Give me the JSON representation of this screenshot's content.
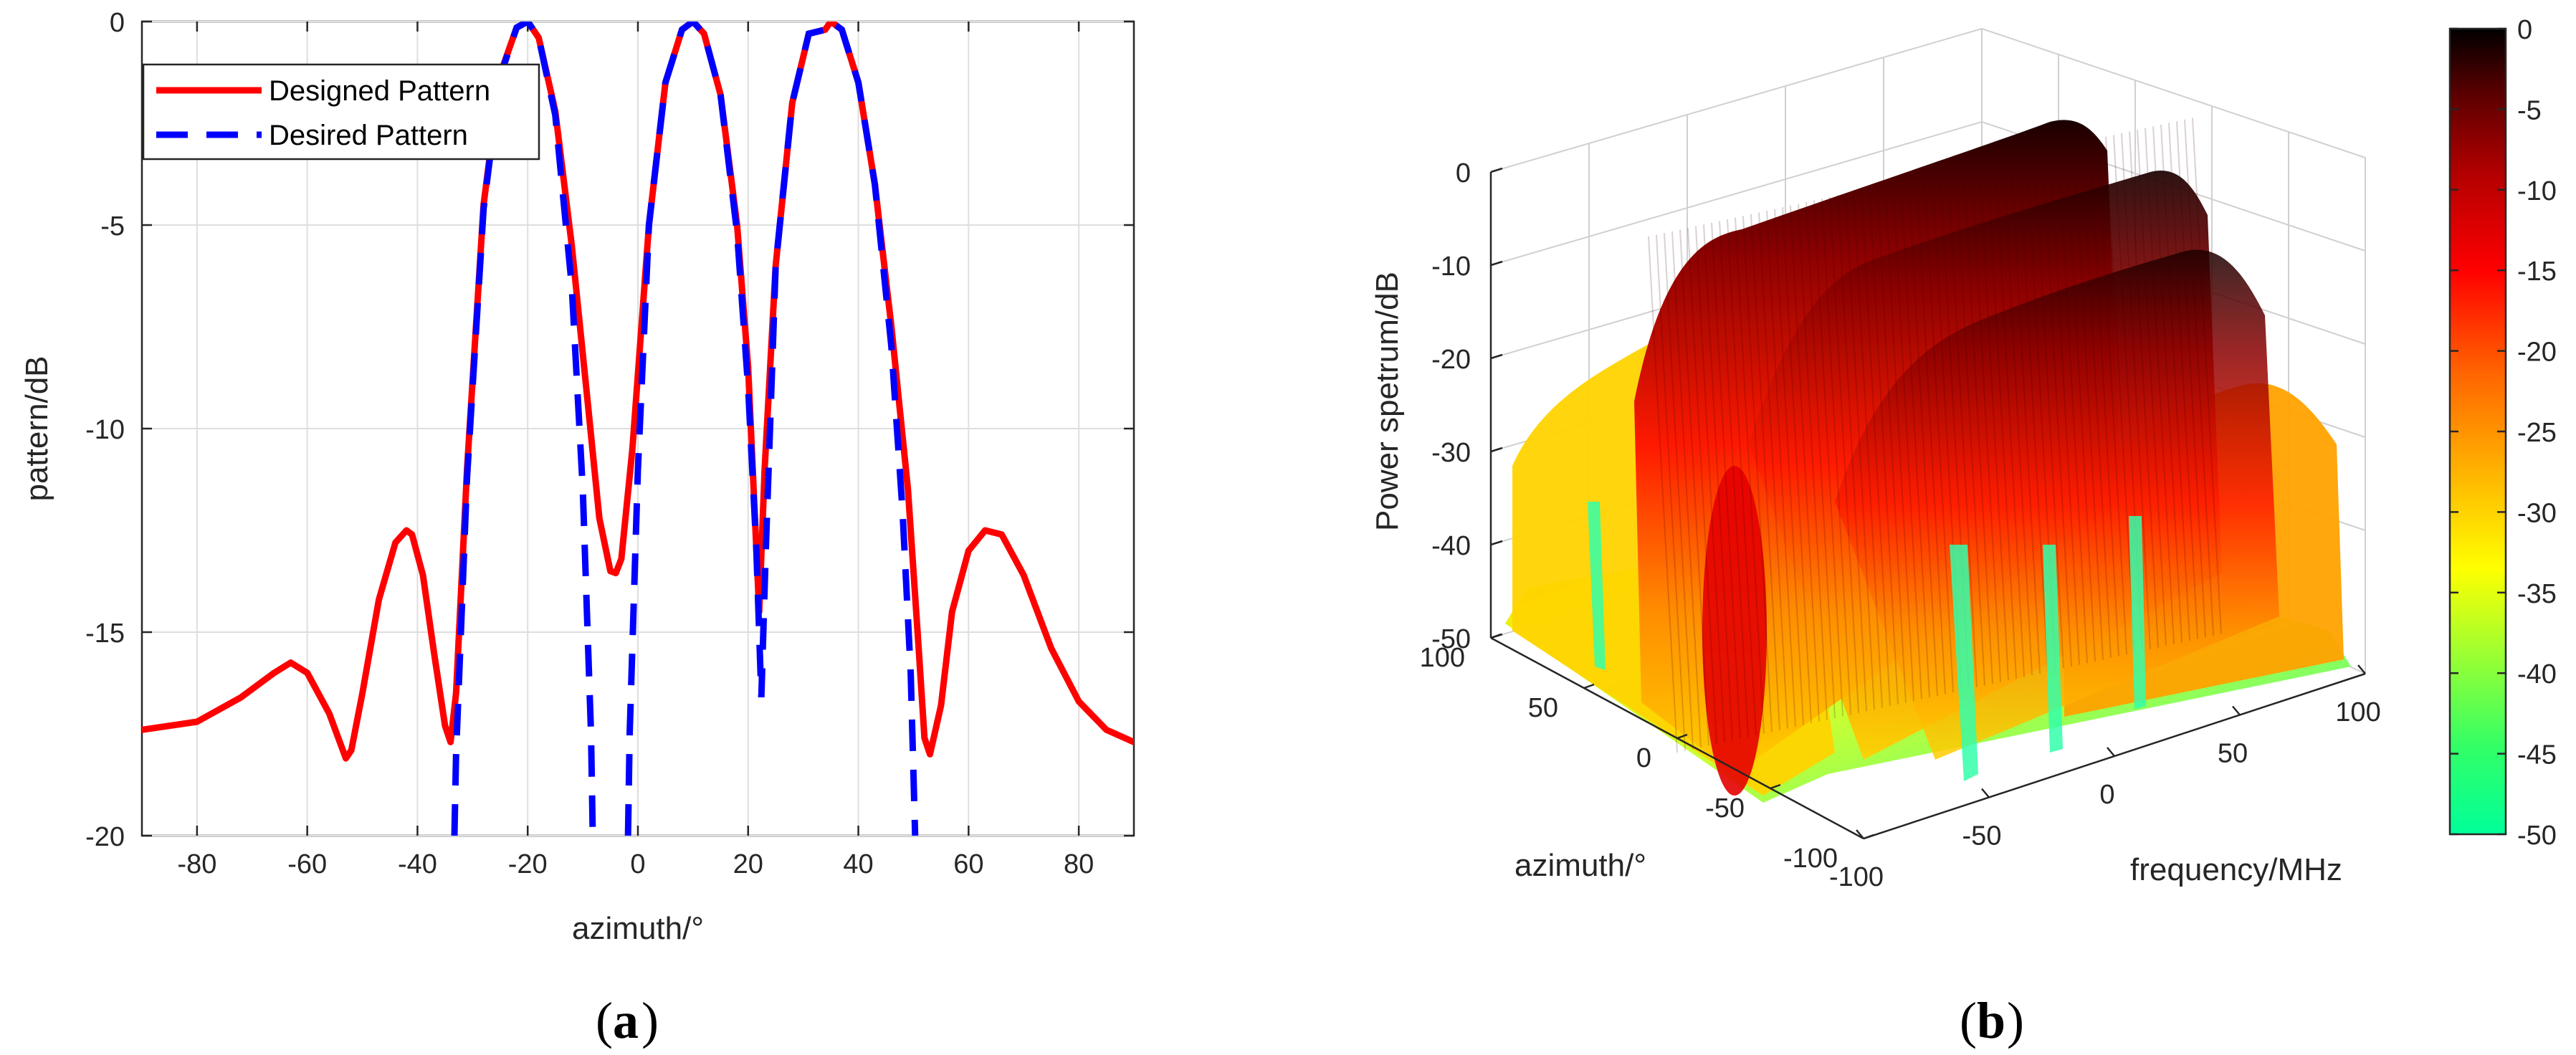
{
  "chart_data": [
    {
      "type": "line",
      "panel_label": "a",
      "xlabel": "azimuth/°",
      "ylabel": "pattern/dB",
      "xlim": [
        -90,
        90
      ],
      "ylim": [
        -20,
        0
      ],
      "xticks": [
        -80,
        -60,
        -40,
        -20,
        0,
        20,
        40,
        60,
        80
      ],
      "yticks": [
        0,
        -5,
        -10,
        -15,
        -20
      ],
      "grid": true,
      "legend_position": "top-left",
      "series": [
        {
          "name": "Designed Pattern",
          "color": "#ff0000",
          "style": "solid",
          "x": [
            -90,
            -80,
            -72,
            -66,
            -63,
            -60,
            -56,
            -53,
            -52,
            -50,
            -47,
            -44,
            -42,
            -41,
            -39,
            -37,
            -35,
            -34,
            -33,
            -31,
            -28,
            -25,
            -22,
            -20,
            -18,
            -15,
            -12,
            -9,
            -7,
            -5,
            -4,
            -3,
            -1,
            2,
            5,
            8,
            10,
            12,
            15,
            18,
            20,
            21,
            22,
            23,
            25,
            28,
            31,
            34,
            35,
            37,
            40,
            43,
            46,
            49,
            51,
            52,
            53,
            55,
            57,
            60,
            63,
            66,
            70,
            75,
            80,
            85,
            90
          ],
          "y": [
            -17.4,
            -17.2,
            -16.6,
            -16.0,
            -15.75,
            -16.0,
            -17.0,
            -18.1,
            -17.9,
            -16.5,
            -14.2,
            -12.8,
            -12.5,
            -12.6,
            -13.6,
            -15.5,
            -17.3,
            -17.7,
            -16.5,
            -11.0,
            -4.5,
            -1.3,
            -0.15,
            0.0,
            -0.4,
            -2.2,
            -5.5,
            -9.5,
            -12.2,
            -13.5,
            -13.55,
            -13.2,
            -10.5,
            -5.0,
            -1.5,
            -0.2,
            0.0,
            -0.3,
            -1.8,
            -5.0,
            -8.5,
            -11.5,
            -14.5,
            -11.0,
            -6.0,
            -2.0,
            -0.3,
            -0.2,
            0.0,
            -0.2,
            -1.5,
            -4.0,
            -7.5,
            -11.5,
            -15.5,
            -17.6,
            -18.0,
            -16.8,
            -14.5,
            -13.0,
            -12.5,
            -12.6,
            -13.6,
            -15.4,
            -16.7,
            -17.4,
            -17.7
          ]
        },
        {
          "name": "Desired Pattern",
          "color": "#0000ff",
          "style": "dashed",
          "x": [
            -33.3,
            -33,
            -31,
            -28,
            -25,
            -22,
            -20,
            -18,
            -15,
            -12,
            -10,
            -8.5,
            -8.2,
            "gap",
            -1.8,
            -1.5,
            0,
            2,
            5,
            8,
            10,
            12,
            15,
            18,
            20,
            21.5,
            22.4,
            23.2,
            25,
            28,
            31,
            34,
            35,
            37,
            40,
            43,
            46,
            48,
            49.5,
            50.3
          ],
          "y": [
            -20,
            -18,
            -11.2,
            -4.6,
            -1.35,
            -0.15,
            0.0,
            -0.4,
            -2.3,
            -6.5,
            -11.5,
            -17.5,
            -20,
            "gap",
            -20,
            -17.5,
            -11.0,
            -5.0,
            -1.5,
            -0.2,
            0.0,
            -0.3,
            -1.8,
            -5.2,
            -9.0,
            -13.0,
            -16.6,
            -13.0,
            -6.0,
            -2.0,
            -0.3,
            -0.2,
            0.0,
            -0.2,
            -1.5,
            -4.0,
            -8.0,
            -12.0,
            -16.0,
            -20
          ]
        }
      ]
    },
    {
      "type": "surface3d",
      "panel_label": "b",
      "zlabel": "Power spetrum/dB",
      "ylabel": "azimuth/°",
      "xlabel": "frequency/MHz",
      "zticks": [
        0,
        -10,
        -20,
        -30,
        -40,
        -50
      ],
      "azimuth_ticks": [
        100,
        50,
        0,
        -50,
        -100
      ],
      "frequency_ticks": [
        -100,
        -50,
        0,
        50,
        100
      ],
      "colorbar": {
        "ticks": [
          0,
          -5,
          -10,
          -15,
          -20,
          -25,
          -30,
          -35,
          -40,
          -45,
          -50
        ],
        "range": [
          -50,
          0
        ],
        "colormap": [
          "#00ff99",
          "#33ff66",
          "#99ff33",
          "#ffff00",
          "#ffb300",
          "#ff6600",
          "#ff0000",
          "#b30000",
          "#5a0000",
          "#000000"
        ]
      }
    }
  ]
}
